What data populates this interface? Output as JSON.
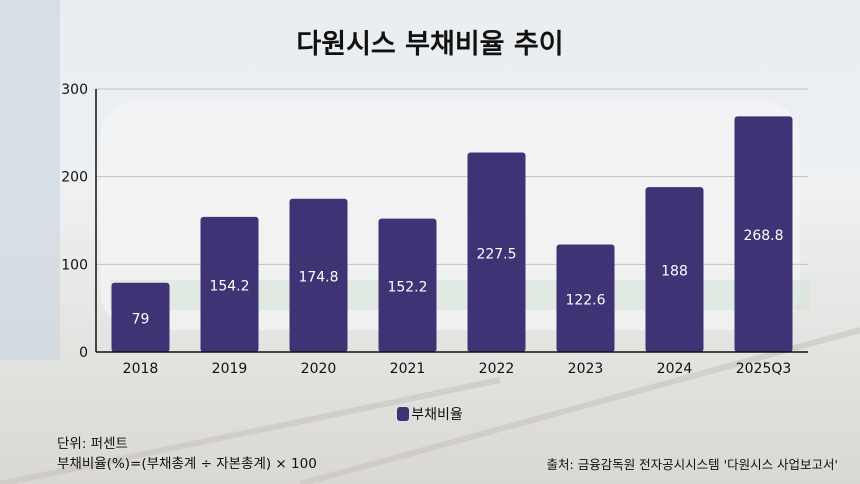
{
  "title": "다원시스 부채비율 추이",
  "legend_label": "부채비율",
  "notes": {
    "unit": "단위: 퍼센트",
    "formula": "부채비율(%)=(부채총계 ÷ 자본총계) × 100"
  },
  "source": "출처: 금융감독원 전자공시시스템 '다원시스 사업보고서'",
  "colors": {
    "bar": "#3f3275"
  },
  "chart_data": {
    "type": "bar",
    "title": "다원시스 부채비율 추이",
    "categories": [
      "2018",
      "2019",
      "2020",
      "2021",
      "2022",
      "2023",
      "2024",
      "2025Q3"
    ],
    "series": [
      {
        "name": "부채비율",
        "values": [
          79,
          154.2,
          174.8,
          152.2,
          227.5,
          122.6,
          188,
          268.8
        ]
      }
    ],
    "data_labels": [
      "79",
      "154.2",
      "174.8",
      "152.2",
      "227.5",
      "122.6",
      "188",
      "268.8"
    ],
    "ylim": [
      0,
      300
    ],
    "yticks": [
      0,
      100,
      200,
      300
    ],
    "grid": true,
    "legend": "bottom"
  }
}
